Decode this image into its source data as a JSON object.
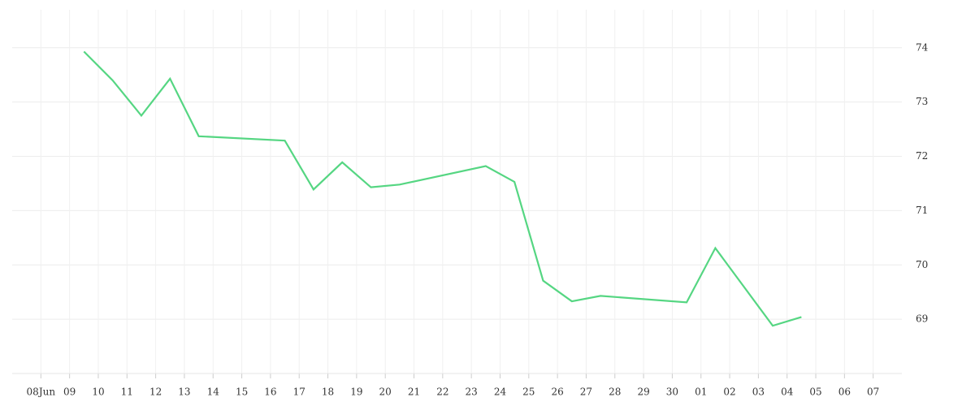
{
  "chart_data": {
    "type": "line",
    "x": [
      1.5,
      2.5,
      3.5,
      4.5,
      5.5,
      8.5,
      9.5,
      10.5,
      11.5,
      12.5,
      15.5,
      16.5,
      17.5,
      18.5,
      19.5,
      22.5,
      23.5,
      25.5,
      26.5
    ],
    "values": [
      73.93,
      73.4,
      72.75,
      73.43,
      72.37,
      72.29,
      71.39,
      71.89,
      71.43,
      71.48,
      71.82,
      71.53,
      69.71,
      69.33,
      69.43,
      69.31,
      70.31,
      68.88,
      69.04
    ],
    "color": "#55d682",
    "xlim": [
      -1,
      30
    ],
    "xticks": [
      {
        "value": 0,
        "label": "08Jun"
      },
      {
        "value": 1,
        "label": "09"
      },
      {
        "value": 2,
        "label": "10"
      },
      {
        "value": 3,
        "label": "11"
      },
      {
        "value": 4,
        "label": "12"
      },
      {
        "value": 5,
        "label": "13"
      },
      {
        "value": 6,
        "label": "14"
      },
      {
        "value": 7,
        "label": "15"
      },
      {
        "value": 8,
        "label": "16"
      },
      {
        "value": 9,
        "label": "17"
      },
      {
        "value": 10,
        "label": "18"
      },
      {
        "value": 11,
        "label": "19"
      },
      {
        "value": 12,
        "label": "20"
      },
      {
        "value": 13,
        "label": "21"
      },
      {
        "value": 14,
        "label": "22"
      },
      {
        "value": 15,
        "label": "23"
      },
      {
        "value": 16,
        "label": "24"
      },
      {
        "value": 17,
        "label": "25"
      },
      {
        "value": 18,
        "label": "26"
      },
      {
        "value": 19,
        "label": "27"
      },
      {
        "value": 20,
        "label": "28"
      },
      {
        "value": 21,
        "label": "29"
      },
      {
        "value": 22,
        "label": "30"
      },
      {
        "value": 23,
        "label": "01"
      },
      {
        "value": 24,
        "label": "02"
      },
      {
        "value": 25,
        "label": "03"
      },
      {
        "value": 26,
        "label": "04"
      },
      {
        "value": 27,
        "label": "05"
      },
      {
        "value": 28,
        "label": "06"
      },
      {
        "value": 29,
        "label": "07"
      }
    ],
    "ylim": [
      68,
      74.7
    ],
    "yticks": [
      69,
      70,
      71,
      72,
      73,
      74
    ],
    "grid": true
  }
}
